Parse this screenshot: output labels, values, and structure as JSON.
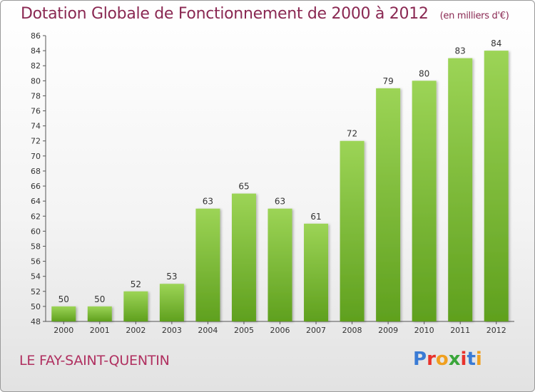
{
  "title": "Dotation Globale de Fonctionnement de 2000 à 2012",
  "subtitle": "(en milliers d'€)",
  "commune": "LE FAY-SAINT-QUENTIN",
  "logo": {
    "text": "Proxiti",
    "colors": [
      "#3a7bd5",
      "#e8322c",
      "#f0a020",
      "#3aa63a",
      "#e8322c",
      "#3a7bd5",
      "#f0a020"
    ]
  },
  "colors": {
    "bar_top": "#9cd456",
    "bar_bottom": "#5fa01e",
    "title": "#8a2852",
    "commune": "#b03060"
  },
  "chart_data": {
    "type": "bar",
    "categories": [
      "2000",
      "2001",
      "2002",
      "2003",
      "2004",
      "2005",
      "2006",
      "2007",
      "2008",
      "2009",
      "2010",
      "2011",
      "2012"
    ],
    "values": [
      50,
      50,
      52,
      53,
      63,
      65,
      63,
      61,
      72,
      79,
      80,
      83,
      84
    ],
    "ylim": [
      48,
      86
    ],
    "yticks": [
      48,
      50,
      52,
      54,
      56,
      58,
      60,
      62,
      64,
      66,
      68,
      70,
      72,
      74,
      76,
      78,
      80,
      82,
      84,
      86
    ],
    "grid": false,
    "legend": "none"
  }
}
